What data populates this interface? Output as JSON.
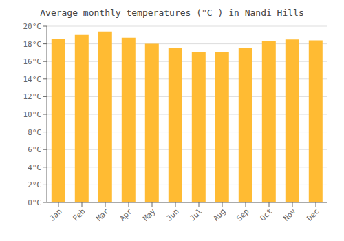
{
  "chart_data": {
    "type": "bar",
    "title": "Average monthly temperatures (°C ) in Nandi Hills",
    "categories": [
      "Jan",
      "Feb",
      "Mar",
      "Apr",
      "May",
      "Jun",
      "Jul",
      "Aug",
      "Sep",
      "Oct",
      "Nov",
      "Dec"
    ],
    "values": [
      18.6,
      19.0,
      19.4,
      18.7,
      18.0,
      17.5,
      17.1,
      17.1,
      17.5,
      18.3,
      18.5,
      18.4
    ],
    "color": "#FFBB33",
    "ylim": [
      0,
      20
    ],
    "yticks": [
      {
        "value": 0,
        "label": "0°C"
      },
      {
        "value": 2,
        "label": "2°C"
      },
      {
        "value": 4,
        "label": "4°C"
      },
      {
        "value": 6,
        "label": "6°C"
      },
      {
        "value": 8,
        "label": "8°C"
      },
      {
        "value": 10,
        "label": "10°C"
      },
      {
        "value": 12,
        "label": "12°C"
      },
      {
        "value": 14,
        "label": "14°C"
      },
      {
        "value": 16,
        "label": "16°C"
      },
      {
        "value": 18,
        "label": "18°C"
      },
      {
        "value": 20,
        "label": "20°C"
      }
    ],
    "grid": true
  }
}
